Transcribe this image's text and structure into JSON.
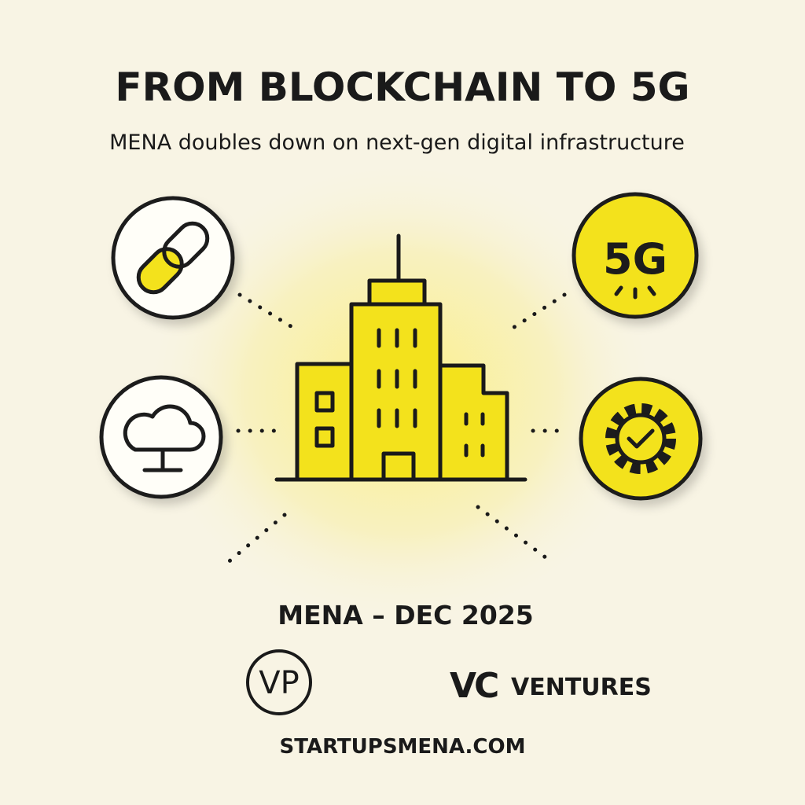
{
  "header": {
    "title": "FROM BLOCKCHAIN TO 5G",
    "subtitle": "MENA doubles down on next-gen digital infrastructure"
  },
  "illustration": {
    "badge_label": "5G"
  },
  "footer": {
    "dateline": "MENA – DEC 2025",
    "logos": [
      {
        "label": "VP"
      },
      {
        "label": "VC",
        "suffix": "VENTURES"
      }
    ],
    "website": "STARTUPSMENA.COM"
  }
}
